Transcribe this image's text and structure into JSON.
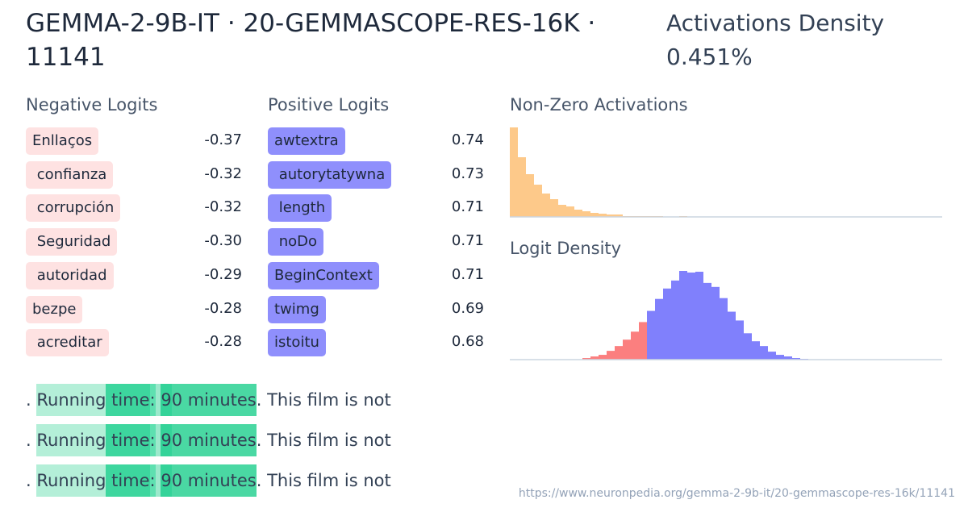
{
  "header": {
    "title": "GEMMA-2-9B-IT · 20-GEMMASCOPE-RES-16K · 11141",
    "density_label": "Activations Density",
    "density_value": "0.451%"
  },
  "negative": {
    "heading": "Negative Logits",
    "items": [
      {
        "token": "Enllaços",
        "value": "-0.37"
      },
      {
        "token": " confianza",
        "value": "-0.32"
      },
      {
        "token": " corrupción",
        "value": "-0.32"
      },
      {
        "token": " Seguridad",
        "value": "-0.30"
      },
      {
        "token": " autoridad",
        "value": "-0.29"
      },
      {
        "token": "bezpe",
        "value": "-0.28"
      },
      {
        "token": " acreditar",
        "value": "-0.28"
      }
    ]
  },
  "positive": {
    "heading": "Positive Logits",
    "items": [
      {
        "token": "awtextra",
        "value": "0.74"
      },
      {
        "token": " autorytatywna",
        "value": "0.73"
      },
      {
        "token": " length",
        "value": "0.71"
      },
      {
        "token": " noDo",
        "value": "0.71"
      },
      {
        "token": "BeginContext",
        "value": "0.71"
      },
      {
        "token": "twimg",
        "value": "0.69"
      },
      {
        "token": "istoitu",
        "value": "0.68"
      }
    ]
  },
  "activations_chart": {
    "heading": "Non-Zero Activations",
    "color": "#fdc98a",
    "values": [
      111,
      74,
      53,
      40,
      29,
      22,
      15,
      13,
      9,
      7,
      5,
      4,
      3,
      3,
      1,
      1,
      1,
      1,
      1,
      0,
      0,
      1
    ]
  },
  "logit_chart": {
    "heading": "Logit Density",
    "neg_color": "#fb7f7f",
    "pos_color": "#8080fc",
    "values": [
      0,
      0,
      0,
      0,
      0,
      0,
      0,
      0.5,
      0.5,
      2,
      4,
      6,
      11,
      17,
      25,
      35,
      47,
      61,
      76,
      89,
      99,
      111,
      109,
      110,
      96,
      91,
      77,
      60,
      49,
      33,
      23,
      17,
      10,
      6,
      4,
      2,
      1,
      0.5,
      0.5
    ],
    "negative_count": 17
  },
  "examples": [
    {
      "tokens": [
        ". ",
        "Running",
        " time",
        ":",
        " ",
        "9",
        "0 minutes",
        ". This film is not"
      ]
    },
    {
      "tokens": [
        ". ",
        "Running",
        " time",
        ":",
        " ",
        "9",
        "0 minutes",
        ". This film is not"
      ]
    },
    {
      "tokens": [
        ". ",
        "Running",
        " time",
        ":",
        " ",
        "9",
        "0 minutes",
        ". This film is not"
      ]
    }
  ],
  "example_colors": [
    "transparent",
    "#b4efd8",
    "#3dd69e",
    "#5ee0b0",
    "#9ce9cc",
    "#34d399",
    "#4ad8a3",
    "transparent"
  ],
  "footer": {
    "url": "https://www.neuronpedia.org/gemma-2-9b-it/20-gemmascope-res-16k/11141"
  }
}
